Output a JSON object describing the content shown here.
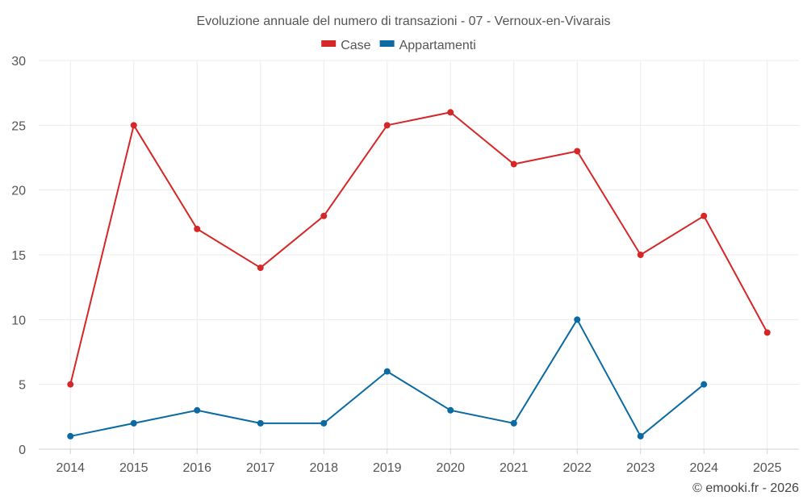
{
  "chart_data": {
    "type": "line",
    "title": "Evoluzione annuale del numero di transazioni - 07 - Vernoux-en-Vivarais",
    "categories": [
      "2014",
      "2015",
      "2016",
      "2017",
      "2018",
      "2019",
      "2020",
      "2021",
      "2022",
      "2023",
      "2024",
      "2025"
    ],
    "series": [
      {
        "name": "Case",
        "color": "#d62728",
        "values": [
          5,
          25,
          17,
          14,
          18,
          25,
          26,
          22,
          23,
          15,
          18,
          9
        ]
      },
      {
        "name": "Appartamenti",
        "color": "#0a6aa1",
        "values": [
          1,
          2,
          3,
          2,
          2,
          6,
          3,
          2,
          10,
          1,
          5,
          null
        ]
      }
    ],
    "ylim": [
      0,
      30
    ],
    "yticks": [
      0,
      5,
      10,
      15,
      20,
      25,
      30
    ],
    "grid": true,
    "legend_position": "top-center",
    "xlabel": "",
    "ylabel": ""
  },
  "credit": "© emooki.fr - 2026"
}
